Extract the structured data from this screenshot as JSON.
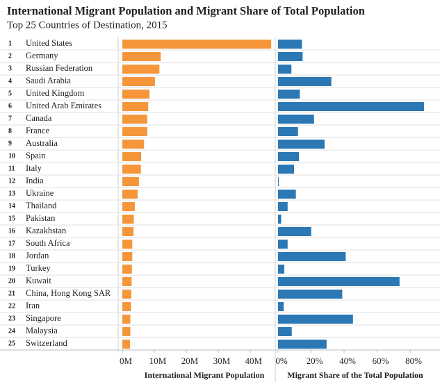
{
  "chart_data": {
    "type": "bar",
    "orientation": "horizontal",
    "title": "International Migrant Population and Migrant Share of Total Population",
    "subtitle": "Top 25 Countries of Destination, 2015",
    "ranks": [
      1,
      2,
      3,
      4,
      5,
      6,
      7,
      8,
      9,
      10,
      11,
      12,
      13,
      14,
      15,
      16,
      17,
      18,
      19,
      20,
      21,
      22,
      23,
      24,
      25
    ],
    "categories": [
      "United States",
      "Germany",
      "Russian Federation",
      "Saudi Arabia",
      "United Kingdom",
      "United Arab Emirates",
      "Canada",
      "France",
      "Australia",
      "Spain",
      "Italy",
      "India",
      "Ukraine",
      "Thailand",
      "Pakistan",
      "Kazakhstan",
      "South Africa",
      "Jordan",
      "Turkey",
      "Kuwait",
      "China, Hong Kong SAR",
      "Iran",
      "Singapore",
      "Malaysia",
      "Switzerland"
    ],
    "series": [
      {
        "name": "International Migrant Population",
        "color": "#f5963b",
        "values": [
          46.6,
          12.0,
          11.6,
          10.2,
          8.5,
          8.1,
          7.8,
          7.8,
          6.8,
          5.9,
          5.8,
          5.2,
          4.8,
          3.9,
          3.6,
          3.5,
          3.1,
          3.1,
          3.0,
          2.9,
          2.8,
          2.7,
          2.5,
          2.5,
          2.4
        ],
        "xlim": [
          0,
          47
        ],
        "xticks": [
          {
            "value": 0,
            "label": "0M"
          },
          {
            "value": 10,
            "label": "10M"
          },
          {
            "value": 20,
            "label": "20M"
          },
          {
            "value": 30,
            "label": "30M"
          },
          {
            "value": 40,
            "label": "40M"
          }
        ]
      },
      {
        "name": "Migrant Share of the Total Population",
        "color": "#2b78b4",
        "values": [
          14.5,
          14.9,
          8.1,
          32.3,
          13.2,
          88.4,
          21.8,
          12.1,
          28.2,
          12.7,
          9.7,
          0.4,
          10.8,
          5.8,
          1.9,
          20.1,
          5.8,
          41.0,
          3.8,
          73.6,
          38.9,
          3.4,
          45.4,
          8.3,
          29.4
        ],
        "xlim": [
          0,
          96
        ],
        "xticks": [
          {
            "value": 0,
            "label": "0%"
          },
          {
            "value": 20,
            "label": "20%"
          },
          {
            "value": 40,
            "label": "40%"
          },
          {
            "value": 60,
            "label": "60%"
          },
          {
            "value": 80,
            "label": "80%"
          }
        ]
      }
    ]
  }
}
